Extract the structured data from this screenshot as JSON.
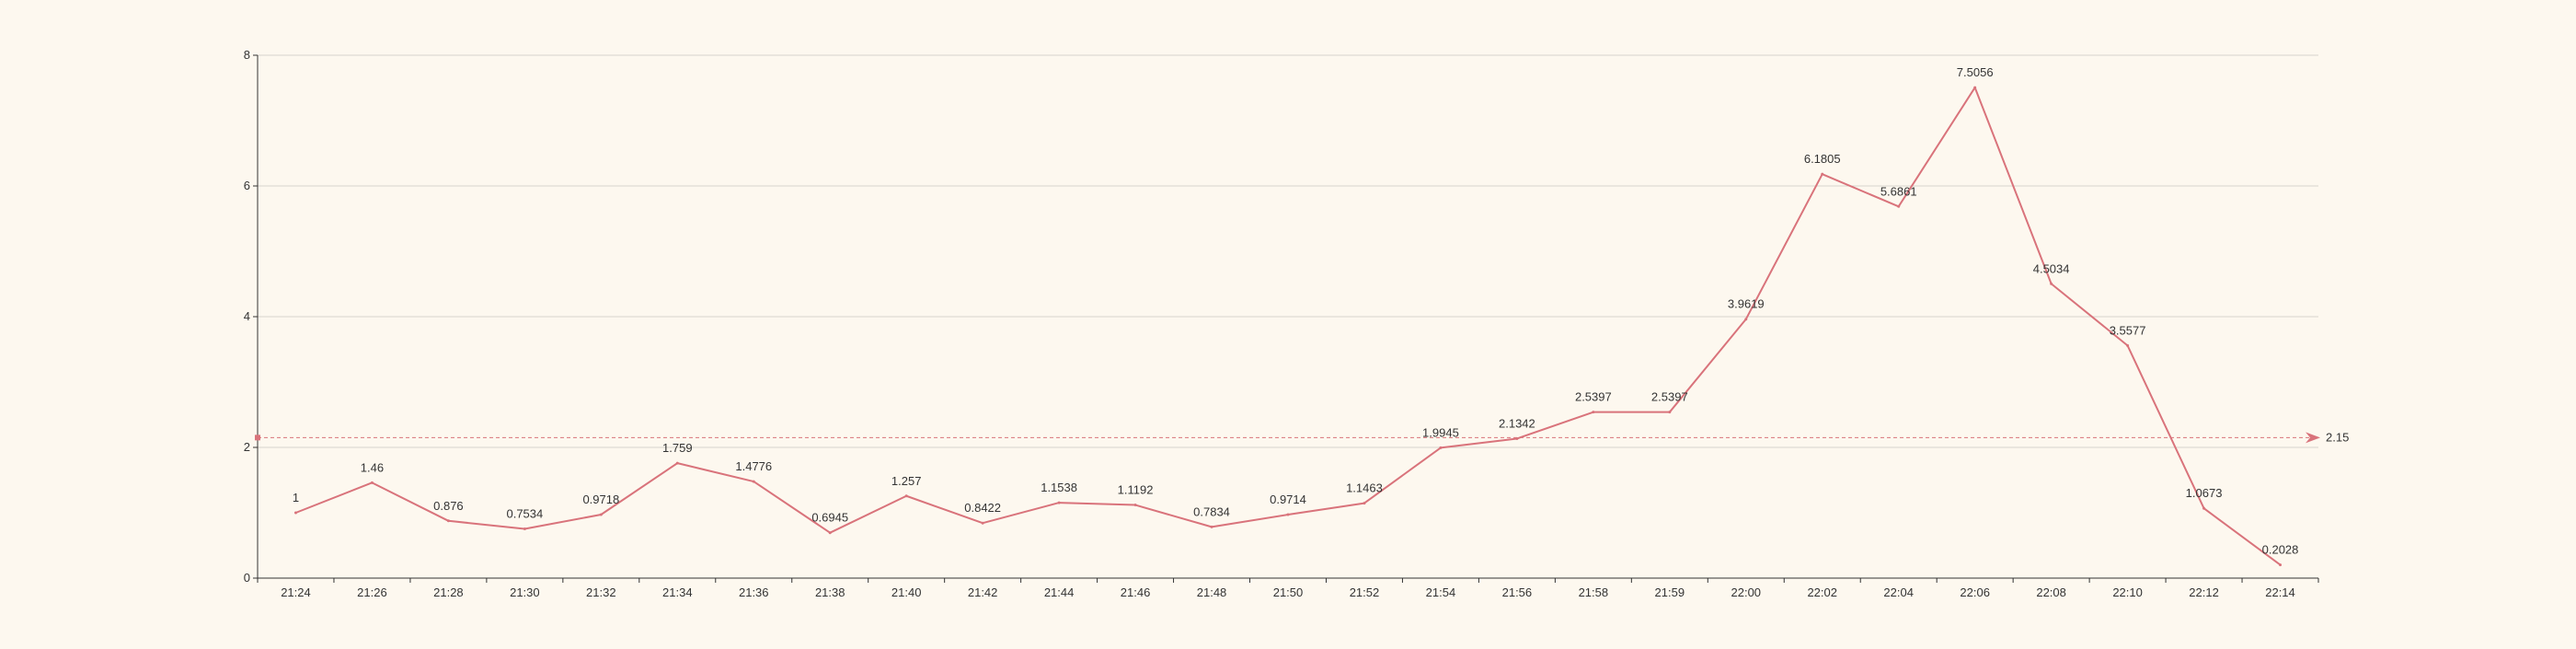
{
  "chart_data": {
    "type": "line",
    "categories": [
      "21:24",
      "21:26",
      "21:28",
      "21:30",
      "21:32",
      "21:34",
      "21:36",
      "21:38",
      "21:40",
      "21:42",
      "21:44",
      "21:46",
      "21:48",
      "21:50",
      "21:52",
      "21:54",
      "21:56",
      "21:58",
      "21:59",
      "22:00",
      "22:02",
      "22:04",
      "22:06",
      "22:08",
      "22:10",
      "22:12",
      "22:14"
    ],
    "series": [
      {
        "values": [
          1,
          1.46,
          0.876,
          0.7534,
          0.9718,
          1.759,
          1.4776,
          0.6945,
          1.257,
          0.8422,
          1.1538,
          1.1192,
          0.7834,
          0.9714,
          1.1463,
          1.9945,
          2.1342,
          2.5397,
          2.5397,
          3.9619,
          6.1805,
          5.6861,
          7.5056,
          4.5034,
          3.5577,
          1.0673,
          0.2028
        ],
        "labels": [
          "1",
          "1.46",
          "0.876",
          "0.7534",
          "0.9718",
          "1.759",
          "1.4776",
          "0.6945",
          "1.257",
          "0.8422",
          "1.1538",
          "1.1192",
          "0.7834",
          "0.9714",
          "1.1463",
          "1.9945",
          "2.1342",
          "2.5397",
          "2.5397",
          "3.9619",
          "6.1805",
          "5.6861",
          "7.5056",
          "4.5034",
          "3.5577",
          "1.0673",
          "0.2028"
        ]
      }
    ],
    "ylim": [
      0,
      8
    ],
    "yticks": [
      0,
      2,
      4,
      6,
      8
    ],
    "ytick_labels": [
      "0",
      "2",
      "4",
      "6",
      "8"
    ],
    "markline": {
      "value": 2.15,
      "label": "2.15"
    },
    "title": "",
    "xlabel": "",
    "ylabel": "",
    "grid": true,
    "colors": {
      "line": "#d9737b",
      "markline": "#d9737b",
      "grid": "#d8d4cc",
      "axis": "#333333",
      "text": "#333333",
      "background": "#fdf8ef"
    }
  }
}
